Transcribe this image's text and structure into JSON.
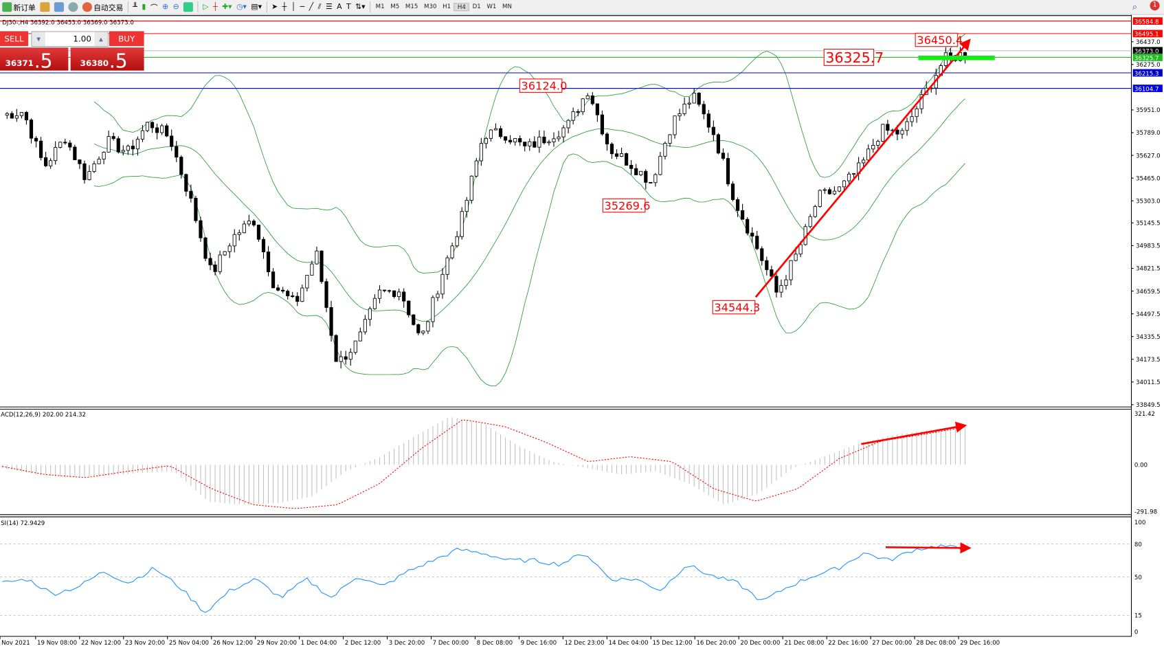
{
  "toolbar": {
    "new_order": "新订单",
    "auto_trading": "自动交易",
    "timeframes": [
      "M1",
      "M5",
      "M15",
      "M30",
      "H1",
      "H4",
      "D1",
      "W1",
      "MN"
    ],
    "active_timeframe": "H4",
    "notification_count": "1"
  },
  "chart": {
    "header": "DJ30-,H4  36392.0 36453.0 36369.0 36373.0",
    "trade_panel": {
      "sell_label": "SELL",
      "buy_label": "BUY",
      "lot": "1.00",
      "sell_price_main": "36371",
      "sell_price_frac": ".5",
      "buy_price_main": "36380",
      "buy_price_frac": ".5"
    },
    "price_axis": [
      "35951.0",
      "35789.0",
      "35627.0",
      "35465.0",
      "35303.0",
      "35145.5",
      "34983.5",
      "34821.5",
      "34659.5",
      "34497.5",
      "34335.5",
      "34173.5",
      "34011.5",
      "33849.5",
      "36437.0",
      "36275.0"
    ],
    "levels": [
      {
        "price": 36584.8,
        "label": "36584.8",
        "color": "#ff0000"
      },
      {
        "price": 36495.1,
        "label": "36495.1",
        "color": "#ff0000"
      },
      {
        "price": 36373.0,
        "label": "36373.0",
        "color": "#000000",
        "line": "#c0c0c0"
      },
      {
        "price": 36325.7,
        "label": "36325.7",
        "color": "#22bb22"
      },
      {
        "price": 36215.3,
        "label": "36215.3",
        "color": "#0000cc"
      },
      {
        "price": 36104.7,
        "label": "36104.7",
        "color": "#0000ee"
      }
    ],
    "annotations": [
      {
        "text": "36124.0",
        "price": 36124.0,
        "at": "9 Dec 16:00"
      },
      {
        "text": "35269.6",
        "price": 35269.6,
        "at": "14 Dec 04:00"
      },
      {
        "text": "34544.3",
        "price": 34544.3,
        "at": "20 Dec 00:00"
      },
      {
        "text": "36325.7",
        "price": 36325.7,
        "at": "16 Dec 20:00",
        "big": true
      },
      {
        "text": "36450.4",
        "price": 36450.4,
        "at": "28 Dec 08:00"
      }
    ],
    "time_axis": [
      "Nov 2021",
      "19 Nov 08:00",
      "22 Nov 12:00",
      "23 Nov 20:00",
      "25 Nov 04:00",
      "26 Nov 12:00",
      "29 Nov 20:00",
      "1 Dec 04:00",
      "2 Dec 12:00",
      "3 Dec 20:00",
      "7 Dec 00:00",
      "8 Dec 08:00",
      "9 Dec 16:00",
      "12 Dec 23:00",
      "14 Dec 04:00",
      "15 Dec 12:00",
      "16 Dec 20:00",
      "20 Dec 00:00",
      "21 Dec 08:00",
      "22 Dec 16:00",
      "27 Dec 00:00",
      "28 Dec 08:00",
      "29 Dec 16:00"
    ],
    "price_path": [
      35914,
      35941,
      35543,
      35755,
      35464,
      35729,
      35650,
      35861,
      35755,
      35305,
      34776,
      35041,
      35173,
      34697,
      34564,
      34935,
      34141,
      34300,
      34644,
      34670,
      34300,
      34776,
      35200,
      35782,
      35782,
      35676,
      35755,
      35835,
      36100,
      35676,
      35570,
      35438,
      35861,
      36047,
      35782,
      35305,
      34988,
      34644,
      34935,
      35332,
      35385,
      35543,
      35808,
      35782,
      36047,
      36311,
      36354
    ],
    "bollinger_color": "#2a9d3a"
  },
  "macd": {
    "label": "ACD(12,26,9) 202.00 214.32",
    "axis": [
      "321.42",
      "0.00",
      "-291.98"
    ],
    "histogram_path": [
      -20,
      -60,
      -80,
      -70,
      -50,
      -40,
      -230,
      -250,
      -240,
      -200,
      -40,
      50,
      180,
      300,
      260,
      120,
      20,
      -20,
      -60,
      -40,
      -120,
      -250,
      -180,
      -20,
      60,
      140,
      190,
      220,
      230
    ],
    "signal_path": [
      -10,
      -60,
      -80,
      -40,
      -5,
      -150,
      -250,
      -274,
      -250,
      -120,
      100,
      284,
      240,
      140,
      20,
      51,
      20,
      -150,
      -228,
      -150,
      40,
      150,
      190,
      237
    ]
  },
  "rsi": {
    "label": "SI(14) 72.9429",
    "axis": [
      "100",
      "80",
      "50",
      "15",
      "0"
    ],
    "path": [
      44.6,
      48,
      34.5,
      41,
      55,
      44.6,
      58,
      41,
      17.6,
      37.8,
      48,
      31,
      48,
      31,
      51,
      41,
      55,
      65,
      75,
      71.6,
      65,
      65,
      61.5,
      72,
      48,
      48,
      37.8,
      61.5,
      51,
      44.6,
      27.7,
      41,
      51,
      58,
      72,
      65,
      75,
      78.4,
      75
    ]
  }
}
